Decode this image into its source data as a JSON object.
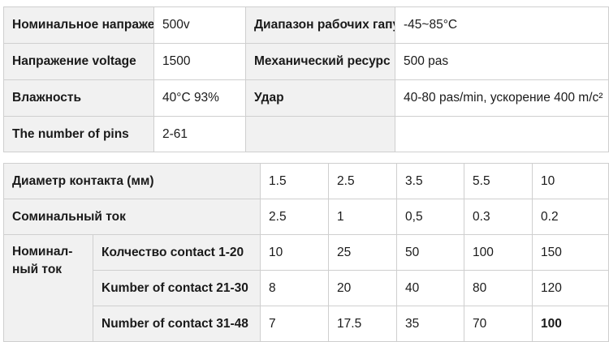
{
  "spec_table": {
    "rows": [
      [
        "Номинальное напражение",
        "500v",
        "Диапазон рабочих гапур",
        "-45~85°C"
      ],
      [
        "Напражение voltage",
        "1500",
        "Механический ресурс",
        "500 pas"
      ],
      [
        "Влажность",
        "40°C 93%",
        "Удар",
        "40-80 pas/min, ускорение 400 m/c²"
      ],
      [
        "The number of pins",
        "2-61",
        "",
        ""
      ]
    ]
  },
  "current_table": {
    "diameter_label": "Диаметр контакта (мм)",
    "diameters": [
      "1.5",
      "2.5",
      "3.5",
      "5.5",
      "10"
    ],
    "nominal_current_label": "Соминальный ток",
    "nominal_currents": [
      "2.5",
      "1",
      "0,5",
      "0.3",
      "0.2"
    ],
    "group_label_line1": "Номинал-",
    "group_label_line2": "ный ток",
    "group_rows": [
      {
        "label": "Колчество contact 1-20",
        "values": [
          "10",
          "25",
          "50",
          "100",
          "150"
        ]
      },
      {
        "label": "Kumber of contact 21-30",
        "values": [
          "8",
          "20",
          "40",
          "80",
          "120"
        ]
      },
      {
        "label": "Number of contact 31-48",
        "values": [
          "7",
          "17.5",
          "35",
          "70",
          "100"
        ]
      }
    ]
  }
}
